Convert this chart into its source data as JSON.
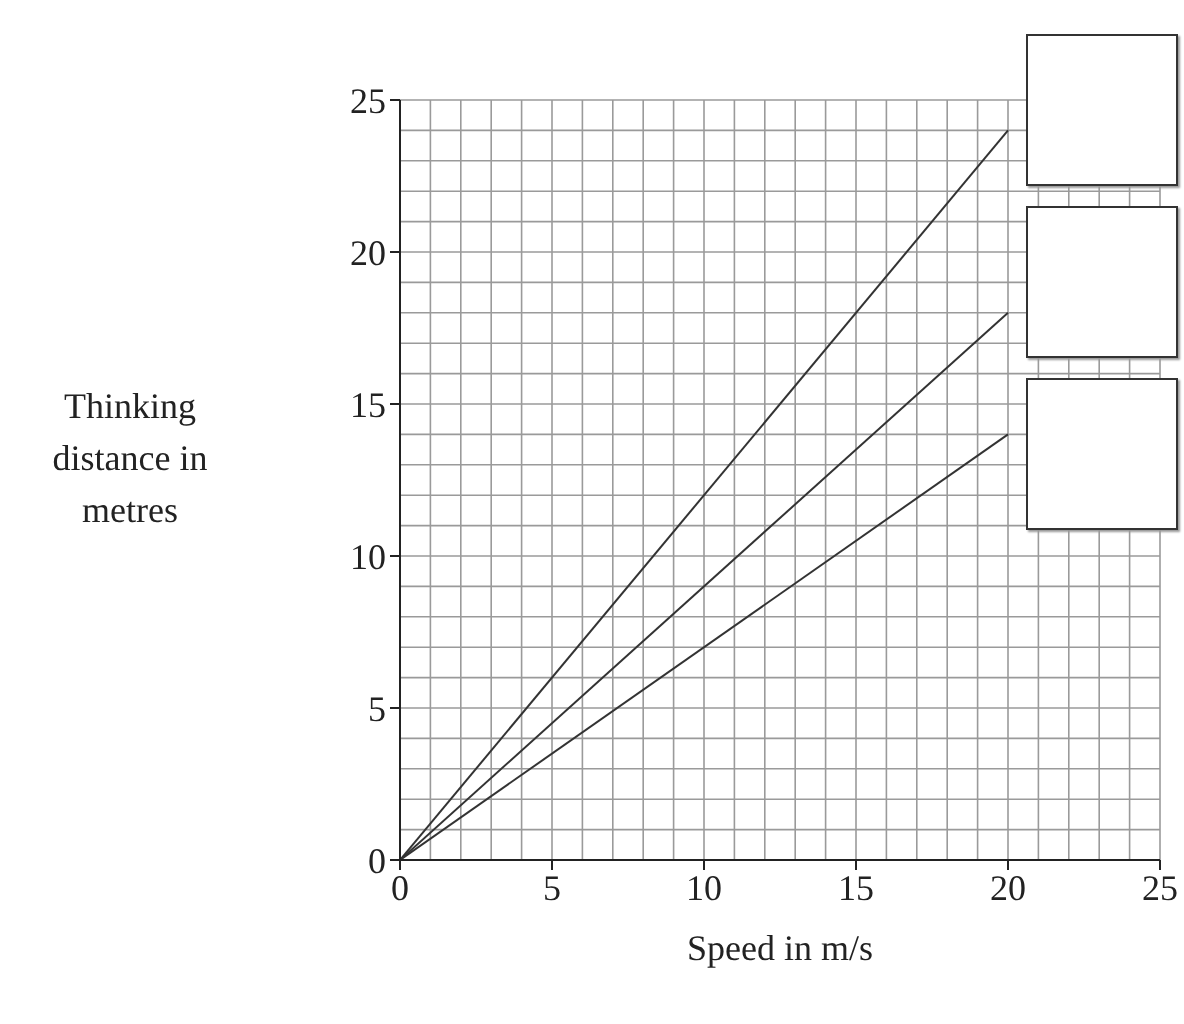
{
  "chart_data": {
    "type": "line",
    "xlabel": "Speed in m/s",
    "ylabel": "Thinking distance in metres",
    "series": [
      {
        "values": [
          0,
          24
        ],
        "color": "#333333"
      },
      {
        "values": [
          0,
          18
        ],
        "color": "#333333"
      },
      {
        "values": [
          0,
          14
        ],
        "color": "#333333"
      }
    ],
    "x": [
      0,
      20
    ],
    "xlim": [
      0,
      25
    ],
    "xticks": [
      0,
      5,
      10,
      15,
      20,
      25
    ],
    "ylim": [
      0,
      25
    ],
    "yticks": [
      0,
      5,
      10,
      15,
      20,
      25
    ],
    "grid": true,
    "marker": "none",
    "line_style": "solid"
  }
}
